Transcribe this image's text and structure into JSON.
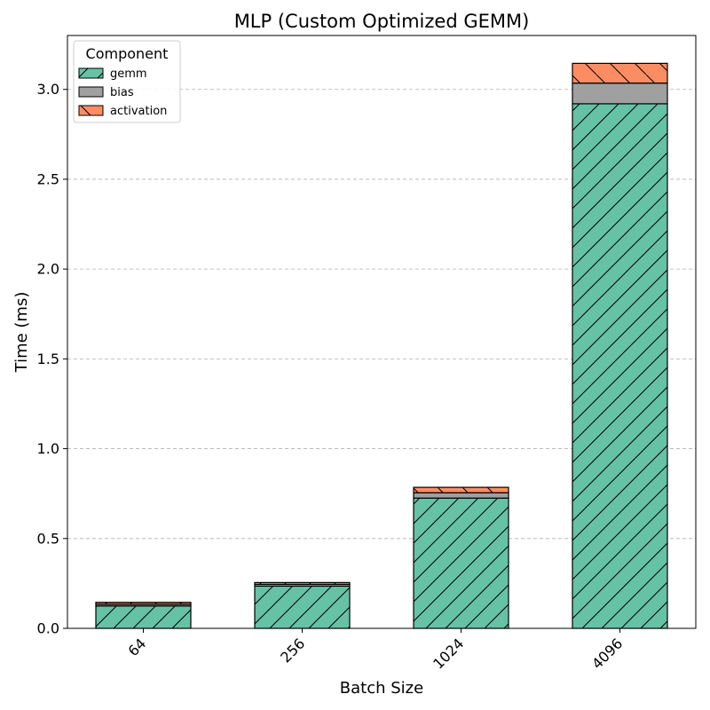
{
  "chart_data": {
    "type": "bar",
    "stacked": true,
    "title": "MLP (Custom Optimized GEMM)",
    "xlabel": "Batch Size",
    "ylabel": "Time (ms)",
    "categories": [
      "64",
      "256",
      "1024",
      "4096"
    ],
    "series": [
      {
        "name": "gemm",
        "values": [
          0.125,
          0.235,
          0.725,
          2.92
        ],
        "color": "#66c2a5",
        "hatch": "forward-diagonal"
      },
      {
        "name": "bias",
        "values": [
          0.01,
          0.01,
          0.03,
          0.115
        ],
        "color": "#a0a0a0",
        "hatch": "none"
      },
      {
        "name": "activation",
        "values": [
          0.01,
          0.01,
          0.03,
          0.11
        ],
        "color": "#fc8d62",
        "hatch": "back-diagonal"
      }
    ],
    "ylim": [
      0,
      3.3
    ],
    "yticks": [
      "0.0",
      "0.5",
      "1.0",
      "1.5",
      "2.0",
      "2.5",
      "3.0"
    ],
    "grid": "y-dashed",
    "legend": {
      "title": "Component",
      "placement": "top-left"
    }
  }
}
